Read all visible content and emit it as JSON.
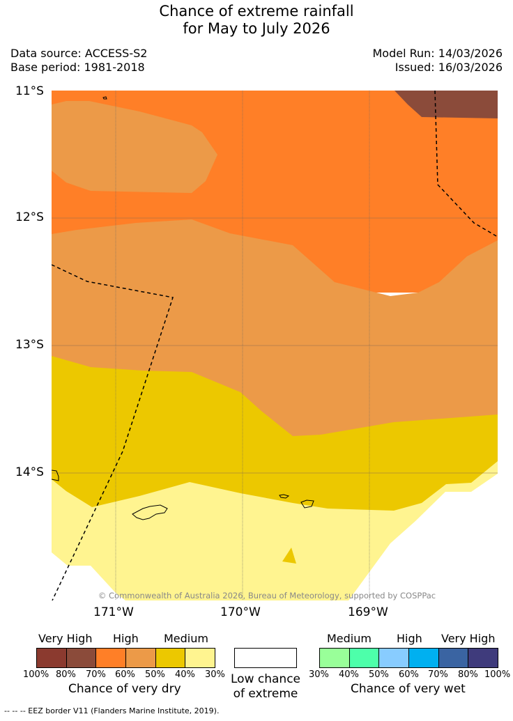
{
  "title": {
    "line1": "Chance of extreme rainfall",
    "line2": "for May to July 2026"
  },
  "meta": {
    "data_source": "Data source: ACCESS-S2",
    "base_period": "Base period: 1981-2018",
    "model_run": "Model Run: 14/03/2026",
    "issued": "Issued: 16/03/2026"
  },
  "map": {
    "lat_labels": [
      "11°S",
      "12°S",
      "13°S",
      "14°S"
    ],
    "lon_labels": [
      "171°W",
      "170°W",
      "169°W"
    ],
    "credit": "© Commonwealth of Australia 2026, Bureau of Meteorology, supported by COSPPac",
    "zone_colors": {
      "very_high_dry": "#8b4b3a",
      "high_dry_70": "#ff7f27",
      "high_dry_60": "#ec9a48",
      "medium_dry_50": "#ecc800",
      "medium_dry_40": "#fff490"
    }
  },
  "legend": {
    "dry": {
      "headings": [
        "Very High",
        "High",
        "Medium"
      ],
      "colors": [
        "#8b3a2f",
        "#8b4b3a",
        "#ff7f27",
        "#ec9a48",
        "#ecc800",
        "#fff490"
      ],
      "ticks": [
        "100%",
        "80%",
        "70%",
        "60%",
        "50%",
        "40%",
        "30%"
      ],
      "caption": "Chance of very dry"
    },
    "low": {
      "color": "#ffffff",
      "caption_line1": "Low chance",
      "caption_line2": "of extreme"
    },
    "wet": {
      "headings": [
        "Medium",
        "High",
        "Very High"
      ],
      "colors": [
        "#99ff99",
        "#4dffaa",
        "#88ccff",
        "#00b0f0",
        "#3a64a2",
        "#3f3b7c"
      ],
      "ticks": [
        "30%",
        "40%",
        "50%",
        "60%",
        "70%",
        "80%",
        "100%"
      ],
      "caption": "Chance of very wet"
    }
  },
  "footer": "-- -- -- EEZ border V11 (Flanders Marine Institute, 2019)."
}
